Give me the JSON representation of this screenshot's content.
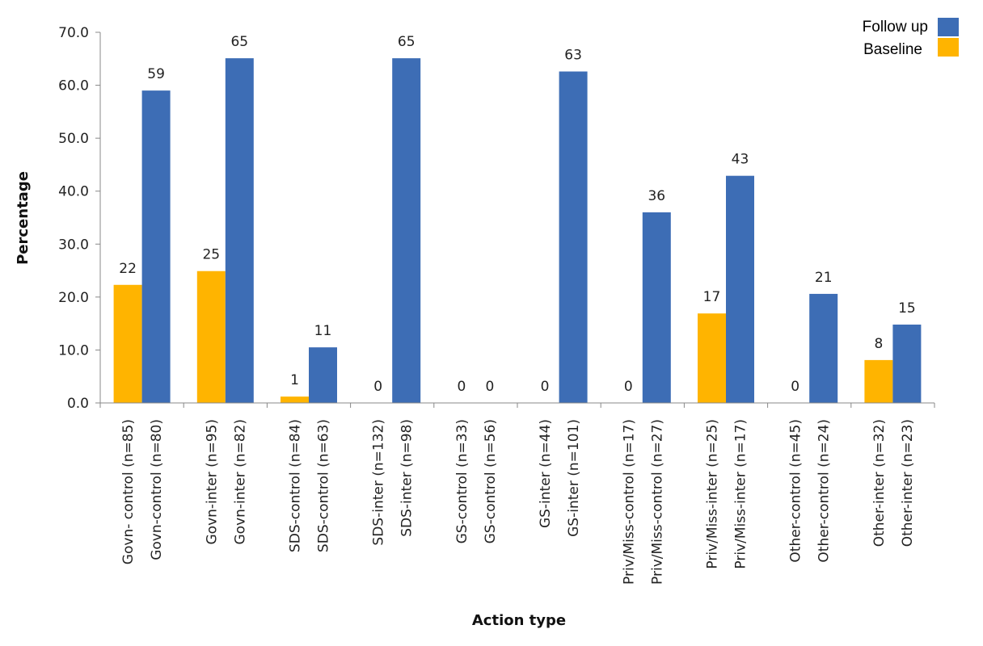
{
  "chart_data": {
    "type": "bar",
    "xlabel": "Action type",
    "ylabel": "Percentage",
    "ylim": [
      0,
      70
    ],
    "yticks": [
      "0.0",
      "10.0",
      "20.0",
      "30.0",
      "40.0",
      "50.0",
      "60.0",
      "70.0"
    ],
    "grid": false,
    "legend_position": "top-right",
    "legend": [
      {
        "name": "Follow up",
        "color": "#3d6db5"
      },
      {
        "name": "Baseline",
        "color": "#ffb400"
      }
    ],
    "groups": [
      {
        "categories": [
          "Govn- control (n=85)",
          "Govn-control (n=80)"
        ],
        "baseline": 22.3,
        "followup": 59.0,
        "baseline_label": "22",
        "followup_label": "59"
      },
      {
        "categories": [
          "Govn-inter (n=95)",
          "Govn-inter (n=82)"
        ],
        "baseline": 24.9,
        "followup": 65.1,
        "baseline_label": "25",
        "followup_label": "65"
      },
      {
        "categories": [
          "SDS-control (n=84)",
          "SDS-control (n=63)"
        ],
        "baseline": 1.2,
        "followup": 10.5,
        "baseline_label": "1",
        "followup_label": "11"
      },
      {
        "categories": [
          "SDS-inter (n=132)",
          "SDS-inter (n=98)"
        ],
        "baseline": 0,
        "followup": 65.1,
        "baseline_label": "0",
        "followup_label": "65"
      },
      {
        "categories": [
          "GS-control (n=33)",
          "GS-control (n=56)"
        ],
        "baseline": 0,
        "followup": 0,
        "baseline_label": "0",
        "followup_label": "0"
      },
      {
        "categories": [
          "GS-inter (n=44)",
          "GS-inter (n=101)"
        ],
        "baseline": 0,
        "followup": 62.6,
        "baseline_label": "0",
        "followup_label": "63"
      },
      {
        "categories": [
          "Priv/Miss-control (n=17)",
          "Priv/Miss-control (n=27)"
        ],
        "baseline": 0,
        "followup": 36.0,
        "baseline_label": "0",
        "followup_label": "36"
      },
      {
        "categories": [
          "Priv/Miss-inter (n=25)",
          "Priv/Miss-inter (n=17)"
        ],
        "baseline": 16.9,
        "followup": 42.9,
        "baseline_label": "17",
        "followup_label": "43"
      },
      {
        "categories": [
          "Other-control (n=45)",
          "Other-control (n=24)"
        ],
        "baseline": 0,
        "followup": 20.6,
        "baseline_label": "0",
        "followup_label": "21"
      },
      {
        "categories": [
          "Other-inter (n=32)",
          "Other-inter (n=23)"
        ],
        "baseline": 8.1,
        "followup": 14.8,
        "baseline_label": "8",
        "followup_label": "15"
      }
    ]
  }
}
